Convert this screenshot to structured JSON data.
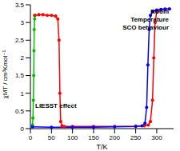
{
  "chart_data": {
    "type": "line",
    "x_label": "T/K",
    "y_label": "χMT / cm³Kmol⁻¹",
    "annotations": [
      "Room Temperature SCO behaviour",
      "LIESST effect"
    ],
    "xlim": [
      0,
      340
    ],
    "xticks": [
      0,
      50,
      100,
      150,
      200,
      250,
      300
    ],
    "ylim": [
      0,
      3.5
    ],
    "yticks": [
      0,
      0.5,
      1,
      1.5,
      2,
      2.5,
      3,
      3.5
    ],
    "grid": false,
    "series": [
      {
        "color": "#00c000",
        "marker": "circle",
        "x": [
          5,
          6,
          7,
          8,
          8.5,
          9,
          10,
          11
        ],
        "values": [
          0.1,
          0.3,
          0.8,
          1.5,
          2.2,
          2.8,
          3.1,
          3.2
        ]
      },
      {
        "color": "#ff0000",
        "marker": "circle",
        "x": [
          10,
          20,
          30,
          40,
          50,
          60,
          65,
          68,
          70,
          72,
          75,
          80,
          100,
          150,
          200,
          250,
          270,
          280,
          285,
          290,
          293,
          296,
          300,
          310,
          320,
          330
        ],
        "values": [
          3.2,
          3.22,
          3.22,
          3.2,
          3.2,
          3.18,
          3.1,
          2.5,
          1.0,
          0.2,
          0.08,
          0.06,
          0.06,
          0.06,
          0.06,
          0.07,
          0.08,
          0.1,
          0.2,
          0.8,
          2.0,
          3.0,
          3.3,
          3.35,
          3.37,
          3.38
        ]
      },
      {
        "color": "#0000ff",
        "marker": "circle",
        "x": [
          5,
          50,
          100,
          150,
          200,
          250,
          265,
          272,
          276,
          279,
          282,
          285,
          290,
          300,
          310,
          320,
          330
        ],
        "values": [
          0.05,
          0.04,
          0.04,
          0.04,
          0.05,
          0.06,
          0.08,
          0.15,
          0.6,
          1.8,
          2.8,
          3.2,
          3.3,
          3.35,
          3.37,
          3.38,
          3.38
        ]
      }
    ]
  }
}
